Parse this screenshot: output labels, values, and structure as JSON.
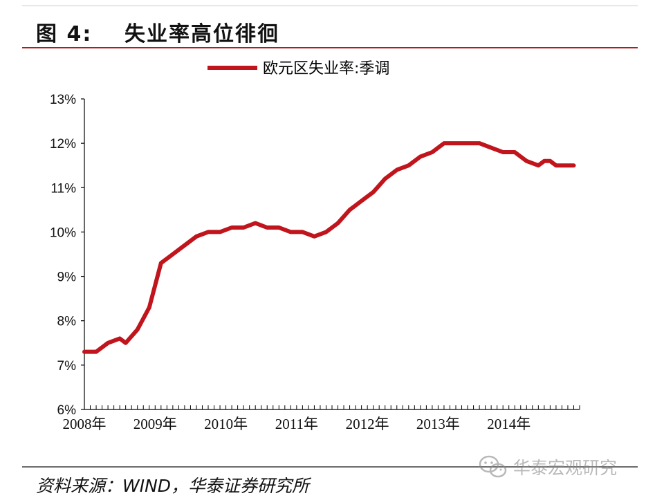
{
  "header": {
    "figure_number": "图 4:",
    "title": "失业率高位徘徊"
  },
  "source": "资料来源：WIND，华泰证券研究所",
  "watermark": "华泰宏观研究",
  "colors": {
    "series": "#c0151c",
    "axis": "#000000",
    "rule": "#b01c1c"
  },
  "chart_data": {
    "type": "line",
    "title": "",
    "xlabel": "",
    "ylabel": "",
    "legend": {
      "placement": "top-center"
    },
    "grid": false,
    "ylim": [
      6,
      13
    ],
    "y_ticks": [
      "6%",
      "7%",
      "8%",
      "9%",
      "10%",
      "11%",
      "12%",
      "13%"
    ],
    "xlim": [
      "2008-01",
      "2014-12"
    ],
    "x_ticks": [
      "2008年",
      "2009年",
      "2010年",
      "2011年",
      "2012年",
      "2013年",
      "2014年"
    ],
    "series": [
      {
        "name": "欧元区失业率:季调",
        "x": [
          "2008-01",
          "2008-03",
          "2008-05",
          "2008-07",
          "2008-08",
          "2008-10",
          "2008-12",
          "2009-02",
          "2009-04",
          "2009-06",
          "2009-08",
          "2009-10",
          "2009-12",
          "2010-02",
          "2010-04",
          "2010-06",
          "2010-08",
          "2010-10",
          "2010-12",
          "2011-02",
          "2011-04",
          "2011-06",
          "2011-08",
          "2011-10",
          "2011-12",
          "2012-02",
          "2012-04",
          "2012-06",
          "2012-08",
          "2012-10",
          "2012-12",
          "2013-02",
          "2013-04",
          "2013-06",
          "2013-08",
          "2013-10",
          "2013-12",
          "2014-02",
          "2014-04",
          "2014-06",
          "2014-07",
          "2014-08",
          "2014-09",
          "2014-10",
          "2014-12"
        ],
        "values": [
          7.3,
          7.3,
          7.5,
          7.6,
          7.5,
          7.8,
          8.3,
          9.3,
          9.5,
          9.7,
          9.9,
          10.0,
          10.0,
          10.1,
          10.1,
          10.2,
          10.1,
          10.1,
          10.0,
          10.0,
          9.9,
          10.0,
          10.2,
          10.5,
          10.7,
          10.9,
          11.2,
          11.4,
          11.5,
          11.7,
          11.8,
          12.0,
          12.0,
          12.0,
          12.0,
          11.9,
          11.8,
          11.8,
          11.6,
          11.5,
          11.6,
          11.6,
          11.5,
          11.5,
          11.5
        ]
      }
    ]
  }
}
